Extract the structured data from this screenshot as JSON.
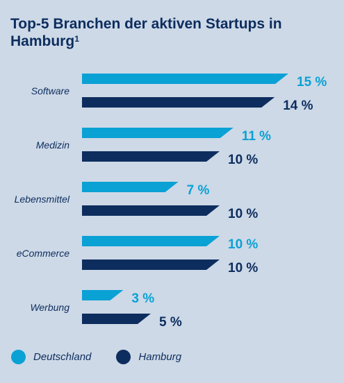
{
  "title": {
    "main": "Top-5 Branchen der aktiven Startups in Hamburg",
    "footnote": "1"
  },
  "colors": {
    "background": "#cdd9e7",
    "deutschland": "#0aa1d5",
    "hamburg": "#0d2d5e",
    "text": "#0d2d5e"
  },
  "legend": [
    {
      "label": "Deutschland",
      "color": "#0aa1d5"
    },
    {
      "label": "Hamburg",
      "color": "#0d2d5e"
    }
  ],
  "chart_data": {
    "type": "bar",
    "orientation": "horizontal",
    "categories": [
      "Software",
      "Medizin",
      "Lebensmittel",
      "eCommerce",
      "Werbung"
    ],
    "series": [
      {
        "name": "Deutschland",
        "values": [
          15,
          11,
          7,
          10,
          3
        ],
        "labels": [
          "15 %",
          "11 %",
          "7 %",
          "10 %",
          "3 %"
        ]
      },
      {
        "name": "Hamburg",
        "values": [
          14,
          10,
          10,
          10,
          5
        ],
        "labels": [
          "14 %",
          "10 %",
          "10 %",
          "10 %",
          "5 %"
        ]
      }
    ],
    "xlim": [
      0,
      15
    ],
    "grid": false,
    "legend_position": "bottom-left"
  }
}
